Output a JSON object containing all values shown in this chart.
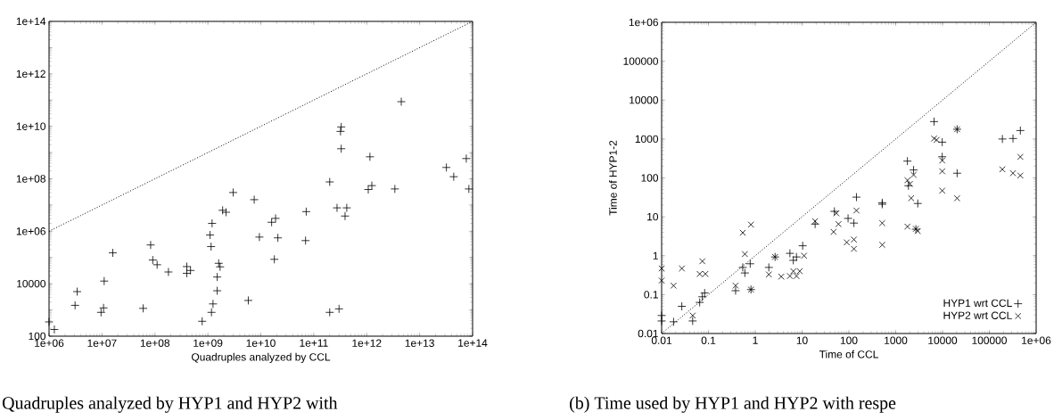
{
  "chart_data": [
    {
      "type": "scatter",
      "xlabel": "Quadruples analyzed by CCL",
      "log": "xy",
      "legend": false,
      "xlim": [
        1000000,
        100000000000000
      ],
      "ylim": [
        100,
        100000000000000
      ],
      "xticks": [
        {
          "value": 1000000,
          "label": "1e+06"
        },
        {
          "value": 10000000,
          "label": "1e+07"
        },
        {
          "value": 100000000,
          "label": "1e+08"
        },
        {
          "value": 1000000000,
          "label": "1e+09"
        },
        {
          "value": 10000000000,
          "label": "1e+10"
        },
        {
          "value": 100000000000,
          "label": "1e+11"
        },
        {
          "value": 1000000000000,
          "label": "1e+12"
        },
        {
          "value": 10000000000000,
          "label": "1e+13"
        },
        {
          "value": 100000000000000,
          "label": "1e+14"
        }
      ],
      "yticks": [
        100,
        {
          "value": 1000,
          "label": null
        },
        10000,
        {
          "value": 100000,
          "label": null
        },
        {
          "value": 1000000,
          "label": "1e+06"
        },
        {
          "value": 10000000,
          "label": null
        },
        {
          "value": 100000000,
          "label": "1e+08"
        },
        {
          "value": 1000000000,
          "label": null
        },
        {
          "value": 10000000000,
          "label": "1e+10"
        },
        {
          "value": 100000000000,
          "label": null
        },
        {
          "value": 1000000000000,
          "label": "1e+12"
        },
        {
          "value": 10000000000000,
          "label": null
        },
        {
          "value": 100000000000000,
          "label": "1e+14"
        }
      ],
      "annotations": [
        "Quadruples analyzed by HYP1 and HYP2 with"
      ],
      "series": [
        {
          "color": "#000000",
          "marker": "plus",
          "x": [
            1000000,
            1260000,
            3400000,
            3100000,
            11000000,
            9600000,
            10700000,
            16000000,
            60000000,
            83000000,
            91000000,
            110000000,
            180000000,
            400000000,
            400000000,
            470000000,
            780000000,
            1100000000,
            1200000000,
            1150000000,
            1250000000,
            1170000000,
            1500000000,
            1500000000,
            1600000000,
            1700000000,
            1900000000,
            2200000000,
            3000000000,
            5800000000,
            7500000000,
            9400000000,
            16000000000,
            19000000000,
            21000000000,
            18000000000,
            72000000000,
            70000000000,
            200000000000,
            200000000000,
            300000000000,
            275000000000,
            330000000000,
            320000000000,
            330000000000,
            420000000000,
            390000000000,
            1150000000000,
            1070000000000,
            1250000000000,
            3400000000000,
            4500000000000,
            32000000000000,
            44000000000000,
            76000000000000,
            85000000000000
          ],
          "values": [
            350,
            180,
            5000,
            1500,
            12600,
            810,
            1200,
            150000,
            1150,
            300000,
            80000,
            53000,
            28000,
            45000,
            25000,
            32000,
            370,
            720000,
            2000000,
            260000,
            1700,
            810,
            5400,
            18000,
            60000,
            44000,
            6300000,
            5300000,
            30000000,
            2300,
            16000000,
            600000,
            2200000,
            3100000,
            560000,
            85000,
            5600000,
            440000,
            76000000,
            810,
            1100,
            7800000,
            9500000000,
            6400000000,
            1400000000,
            7800000,
            3800000,
            690000000,
            39000000,
            55000000,
            41000000,
            87000000000,
            270000000,
            120000000,
            590000000,
            41000000
          ]
        },
        {
          "type": "line",
          "color": "#000000",
          "line_style": "dotted",
          "marker": "none",
          "x": [
            1000000,
            100000000000000
          ],
          "values": [
            1000000,
            100000000000000
          ]
        }
      ]
    },
    {
      "type": "scatter",
      "xlabel": "Time of CCL",
      "ylabel": "Time of HYP1-2",
      "log": "xy",
      "legend": "bottom right",
      "xlim": [
        0.01,
        1000000
      ],
      "ylim": [
        0.01,
        1000000
      ],
      "xticks": [
        0.01,
        0.1,
        1,
        10,
        100,
        1000,
        10000,
        100000,
        {
          "value": 1000000,
          "label": "1e+06"
        }
      ],
      "yticks": [
        0.01,
        0.1,
        1,
        10,
        100,
        1000,
        10000,
        100000,
        {
          "value": 1000000,
          "label": "1e+06"
        }
      ],
      "annotations": [
        "(b) Time used by HYP1 and HYP2 with respe"
      ],
      "series": [
        {
          "name": "HYP1 wrt CCL",
          "color": "#000000",
          "marker": "plus",
          "x": [
            0.01,
            0.01,
            0.018,
            0.027,
            0.046,
            0.065,
            0.074,
            0.083,
            0.38,
            0.54,
            0.6,
            0.78,
            0.81,
            1.95,
            2.65,
            5.5,
            6.5,
            7.6,
            10.3,
            19,
            49,
            96,
            128,
            145,
            515,
            515,
            1780,
            2410,
            1870,
            2960,
            2700,
            6600,
            9850,
            9850,
            20500,
            20500,
            190000,
            320000,
            460000
          ],
          "values": [
            0.029,
            0.021,
            0.02,
            0.05,
            0.021,
            0.063,
            0.088,
            0.11,
            0.126,
            0.5,
            0.36,
            0.62,
            0.135,
            0.5,
            0.93,
            1.15,
            0.76,
            0.93,
            1.8,
            6.5,
            13.8,
            9.1,
            6.9,
            32,
            23,
            21,
            270,
            160,
            63,
            22,
            4.8,
            2800,
            830,
            350,
            132,
            1780,
            1000,
            1030,
            1650
          ]
        },
        {
          "name": "HYP2 wrt CCL",
          "color": "#000000",
          "marker": "cross",
          "x": [
            0.01,
            0.01,
            0.018,
            0.027,
            0.046,
            0.074,
            0.065,
            0.086,
            0.38,
            0.54,
            0.81,
            0.6,
            0.81,
            1.95,
            2.65,
            3.6,
            5.5,
            6.5,
            7.6,
            8.9,
            11,
            19,
            47,
            54,
            60,
            90,
            128,
            128,
            145,
            515,
            515,
            1780,
            2010,
            2410,
            2140,
            1780,
            2700,
            2960,
            6600,
            7500,
            9850,
            9850,
            9850,
            20500,
            20500,
            190000,
            320000,
            460000,
            460000
          ],
          "values": [
            0.47,
            0.23,
            0.17,
            0.47,
            0.029,
            0.72,
            0.34,
            0.34,
            0.17,
            3.9,
            6.3,
            1.1,
            0.135,
            0.33,
            0.93,
            0.29,
            0.3,
            0.4,
            0.3,
            0.4,
            1.0,
            7.7,
            4.1,
            12.3,
            6.5,
            2.2,
            2.6,
            1.5,
            14.5,
            6.9,
            1.9,
            87,
            70,
            120,
            30,
            5.6,
            4.9,
            4.3,
            1030,
            950,
            280,
            148,
            47,
            30,
            1780,
            166,
            132,
            347,
            115
          ]
        },
        {
          "type": "line",
          "color": "#000000",
          "line_style": "dotted",
          "marker": "none",
          "x": [
            0.01,
            1000000
          ],
          "values": [
            0.01,
            1000000
          ]
        }
      ]
    }
  ]
}
